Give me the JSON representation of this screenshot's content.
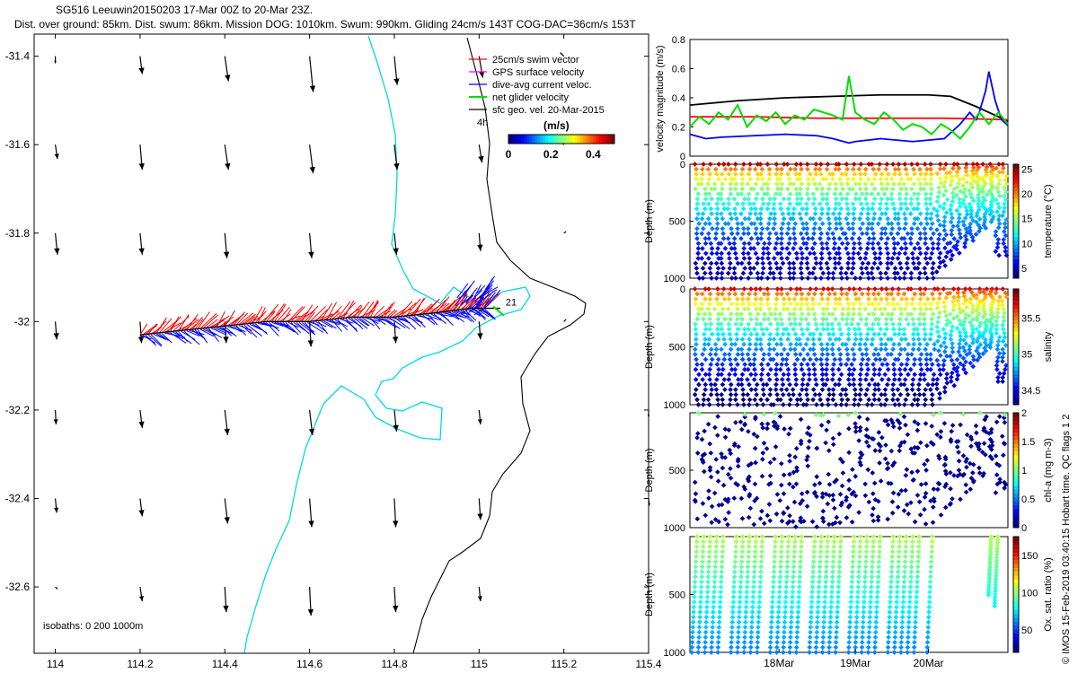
{
  "header": {
    "title_line1": "SG516 Leeuwin20150203 17-Mar 00Z to 20-Mar 23Z.",
    "title_line2": "Dist. over ground: 85km. Dist. swum: 86km. Mission DOG: 1010km. Swum: 990km. Gliding 24cm/s 143T COG-DAC=36cm/s 153T"
  },
  "copyright": "© IMOS 15-Feb-2019 03:40:15 Hobart time. QC flags 1  2",
  "colors": {
    "cyan_isobath": "#00d8e8",
    "coast": "#000000",
    "swim": "#ff0000",
    "gps": "#ff00ff",
    "dac": "#0000ff",
    "net": "#00dd00"
  },
  "chart_data": [
    {
      "type": "scatter",
      "subtype": "map",
      "xlim": [
        113.95,
        115.4
      ],
      "ylim": [
        -32.75,
        -31.35
      ],
      "xticks": [
        "114",
        "114.2",
        "114.4",
        "114.6",
        "114.8",
        "115",
        "115.2",
        "115.4"
      ],
      "yticks": [
        "-31.4",
        "-31.6",
        "-31.8",
        "-32",
        "-32.2",
        "-32.4",
        "-32.6"
      ],
      "legend": {
        "placement": "top-right",
        "items": [
          "25cm/s swim vector",
          "GPS surface velocity",
          "dive-avg current veloc.",
          "net glider velocity",
          "sfc geo. vel. 20-Mar-2015"
        ],
        "label_4h": "4h"
      },
      "colorbar": {
        "title": "(m/s)",
        "ticks": [
          "0",
          "0.2",
          "0.4"
        ],
        "range": [
          0,
          0.5
        ]
      },
      "isobath_note": "isobaths: 0   200   1000m",
      "track_label": "21",
      "track": [
        [
          114.2,
          -32.03
        ],
        [
          114.3,
          -32.02
        ],
        [
          114.4,
          -32.01
        ],
        [
          114.5,
          -32.0
        ],
        [
          114.6,
          -32.0
        ],
        [
          114.7,
          -31.99
        ],
        [
          114.8,
          -31.99
        ],
        [
          114.9,
          -31.98
        ],
        [
          114.98,
          -31.97
        ],
        [
          115.05,
          -31.97
        ]
      ],
      "geo_arrows": {
        "lons": [
          114.0,
          114.2,
          114.4,
          114.6,
          114.8,
          115.0,
          115.2,
          115.4
        ],
        "lats": [
          -31.4,
          -31.6,
          -31.8,
          -32.0,
          -32.2,
          -32.4,
          -32.6
        ],
        "rows": [
          [
            [
              0,
              -0.1
            ],
            [
              0.03,
              -0.25
            ],
            [
              0.05,
              -0.35
            ],
            [
              0.05,
              -0.5
            ],
            [
              0.04,
              -0.4
            ],
            [
              0.05,
              -0.3
            ],
            [
              -0.05,
              0.05
            ],
            [
              0,
              0
            ]
          ],
          [
            [
              0.03,
              -0.2
            ],
            [
              0.03,
              -0.35
            ],
            [
              0.05,
              -0.35
            ],
            [
              0.05,
              -0.4
            ],
            [
              0.04,
              -0.35
            ],
            [
              0.04,
              -0.25
            ],
            [
              -0.08,
              0.08
            ],
            [
              0,
              0
            ]
          ],
          [
            [
              0.03,
              -0.3
            ],
            [
              0.03,
              -0.3
            ],
            [
              0.03,
              -0.35
            ],
            [
              0.03,
              -0.35
            ],
            [
              0.03,
              -0.3
            ],
            [
              0.02,
              -0.25
            ],
            [
              0.03,
              0.02
            ],
            [
              0,
              0
            ]
          ],
          [
            [
              0.02,
              -0.25
            ],
            [
              0.02,
              -0.3
            ],
            [
              0.02,
              -0.3
            ],
            [
              0.02,
              -0.35
            ],
            [
              0.02,
              -0.3
            ],
            [
              0.02,
              -0.25
            ],
            [
              0.03,
              0.03
            ],
            [
              0,
              0
            ]
          ],
          [
            [
              0.01,
              -0.2
            ],
            [
              0.03,
              -0.25
            ],
            [
              0.04,
              -0.35
            ],
            [
              0.04,
              -0.35
            ],
            [
              0.03,
              -0.3
            ],
            [
              0.02,
              -0.2
            ],
            [
              0,
              0
            ],
            [
              0,
              -0.1
            ]
          ],
          [
            [
              0.02,
              -0.2
            ],
            [
              0.03,
              -0.25
            ],
            [
              0.04,
              -0.35
            ],
            [
              0.03,
              -0.4
            ],
            [
              0.02,
              -0.4
            ],
            [
              0.02,
              -0.3
            ],
            [
              0,
              0
            ],
            [
              0.01,
              -0.1
            ]
          ],
          [
            [
              0.03,
              -0.03
            ],
            [
              0.03,
              -0.2
            ],
            [
              0.02,
              -0.35
            ],
            [
              0.02,
              -0.4
            ],
            [
              0.02,
              -0.35
            ],
            [
              0.02,
              -0.2
            ],
            [
              0,
              0
            ],
            [
              0,
              -0.1
            ]
          ]
        ]
      }
    },
    {
      "type": "line",
      "ylabel": "velocity magnitude (m/s)",
      "ylim": [
        0,
        0.8
      ],
      "yticks": [
        "0",
        "0.2",
        "0.4",
        "0.6",
        "0.8"
      ],
      "series": [
        {
          "color": "#000000",
          "x": [
            0,
            0.05,
            0.15,
            0.3,
            0.45,
            0.6,
            0.75,
            0.82,
            0.9,
            1.0
          ],
          "values": [
            0.35,
            0.36,
            0.38,
            0.4,
            0.41,
            0.42,
            0.42,
            0.41,
            0.34,
            0.24
          ]
        },
        {
          "color": "#ff0000",
          "x": [
            0,
            0.2,
            0.4,
            0.6,
            0.8,
            1.0
          ],
          "values": [
            0.27,
            0.27,
            0.26,
            0.26,
            0.26,
            0.25
          ]
        },
        {
          "color": "#0000ff",
          "x": [
            0,
            0.05,
            0.1,
            0.2,
            0.3,
            0.4,
            0.45,
            0.5,
            0.52,
            0.6,
            0.7,
            0.8,
            0.85,
            0.88,
            0.9,
            0.91,
            0.93,
            0.94,
            0.96,
            0.98,
            1.0
          ],
          "values": [
            0.15,
            0.12,
            0.13,
            0.14,
            0.15,
            0.14,
            0.12,
            0.09,
            0.1,
            0.12,
            0.1,
            0.12,
            0.22,
            0.3,
            0.25,
            0.3,
            0.45,
            0.58,
            0.38,
            0.25,
            0.21
          ]
        },
        {
          "color": "#00dd00",
          "x": [
            0,
            0.03,
            0.06,
            0.09,
            0.12,
            0.15,
            0.18,
            0.21,
            0.24,
            0.27,
            0.3,
            0.33,
            0.36,
            0.39,
            0.42,
            0.45,
            0.48,
            0.5,
            0.52,
            0.55,
            0.58,
            0.61,
            0.64,
            0.67,
            0.7,
            0.73,
            0.76,
            0.79,
            0.82,
            0.85,
            0.88,
            0.91,
            0.94,
            0.97,
            1.0
          ],
          "values": [
            0.2,
            0.27,
            0.22,
            0.3,
            0.25,
            0.35,
            0.2,
            0.28,
            0.24,
            0.3,
            0.22,
            0.28,
            0.25,
            0.32,
            0.3,
            0.28,
            0.25,
            0.55,
            0.3,
            0.25,
            0.22,
            0.3,
            0.25,
            0.18,
            0.22,
            0.2,
            0.15,
            0.22,
            0.18,
            0.12,
            0.2,
            0.3,
            0.22,
            0.3,
            0.22
          ]
        }
      ]
    },
    {
      "type": "scatter",
      "ylabel": "Depth (m)",
      "clabel": "temperature (°C)",
      "ylim": [
        1000,
        0
      ],
      "yticks": [
        "0",
        "500",
        "1000"
      ],
      "cticks": [
        "5",
        "10",
        "15",
        "20",
        "25"
      ],
      "crange": [
        3,
        26
      ],
      "ndives": 48,
      "field": "temperature"
    },
    {
      "type": "scatter",
      "ylabel": "Depth (m)",
      "clabel": "salinity",
      "ylim": [
        1000,
        0
      ],
      "yticks": [
        "0",
        "500",
        "1000"
      ],
      "cticks": [
        "34.5",
        "35",
        "35.5"
      ],
      "crange": [
        34.3,
        35.9
      ],
      "ndives": 48,
      "field": "salinity"
    },
    {
      "type": "scatter",
      "ylabel": "Depth (m)",
      "clabel": "chl-a (mg m-3)",
      "ylim": [
        1000,
        0
      ],
      "yticks": [
        "500",
        "1000"
      ],
      "cticks": [
        "0",
        "0.5",
        "1",
        "1.5",
        "2"
      ],
      "crange": [
        0,
        2
      ],
      "ndives": 48,
      "field": "chla"
    },
    {
      "type": "scatter",
      "ylabel": "Depth (m)",
      "clabel": "Ox. sat. ratio (%)",
      "ylim": [
        1000,
        0
      ],
      "yticks": [
        "500",
        "1000"
      ],
      "cticks": [
        "50",
        "100",
        "150"
      ],
      "crange": [
        20,
        175
      ],
      "ndives": 48,
      "field": "oxygen",
      "xticks": [
        "18Mar",
        "19Mar",
        "20Mar"
      ]
    }
  ]
}
